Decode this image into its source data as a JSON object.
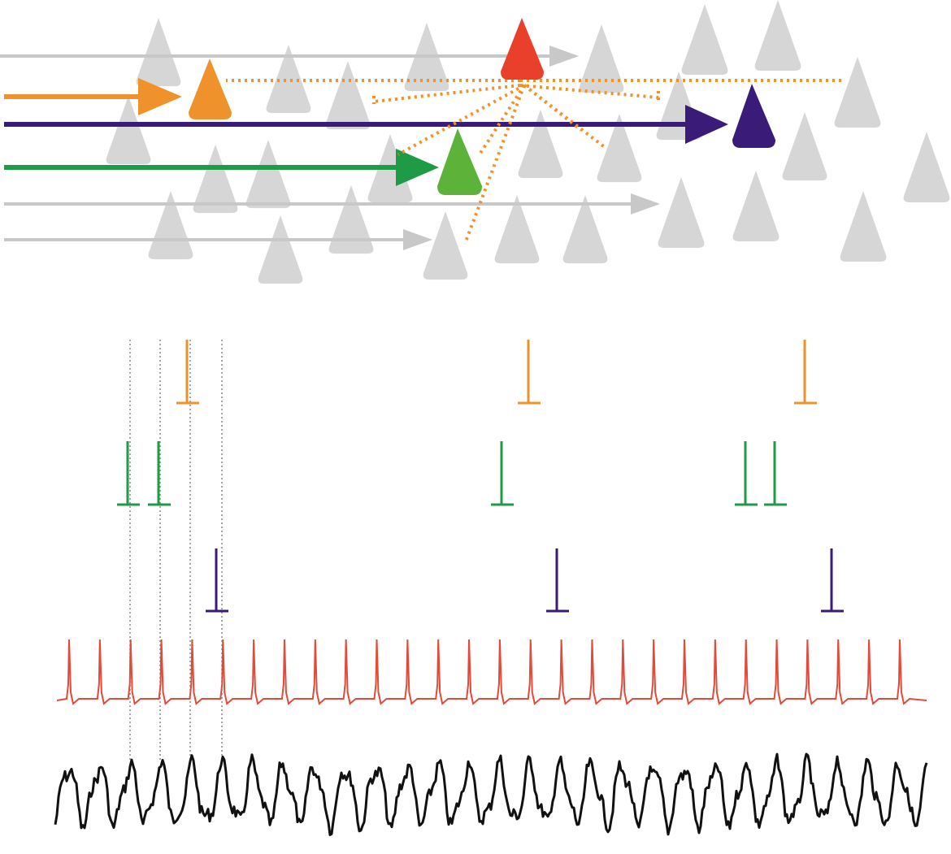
{
  "colors": {
    "background": "#ffffff",
    "neuron_gray": "#d6d6d6",
    "input_gray": "#c4c4c4",
    "orange": "#f0922b",
    "red": "#e8402a",
    "green": "#1f9a46",
    "green_neuron": "#5db33a",
    "purple": "#3b1b78",
    "trace_red": "#e24a3a",
    "lfp_black": "#111111",
    "guide_dotted": "#888888"
  },
  "spike_rasters": [
    {
      "name": "orange",
      "color_key": "orange",
      "spike_times": [
        230,
        650,
        990
      ]
    },
    {
      "name": "green",
      "color_key": "green",
      "spike_times": [
        157,
        195,
        617,
        917,
        953
      ]
    },
    {
      "name": "purple",
      "color_key": "purple",
      "spike_times": [
        266,
        685,
        1023
      ]
    }
  ],
  "red_trace": {
    "period_from": 85,
    "period_step": 37.85,
    "count": 28
  },
  "guide_times": [
    160,
    197,
    234,
    273
  ]
}
